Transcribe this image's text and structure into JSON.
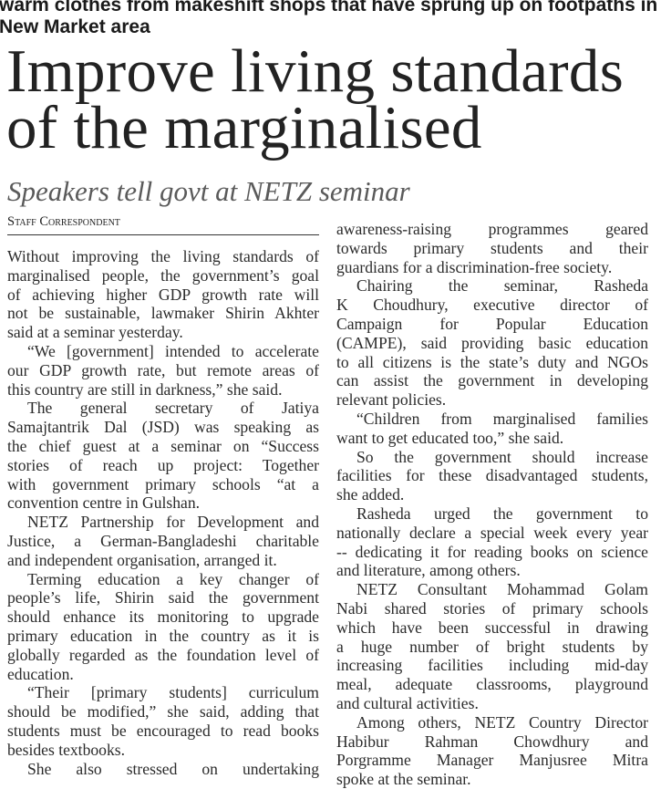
{
  "top_caption": "warm clothes from makeshift shops that have sprung up on footpaths in New Market area",
  "headline": [
    "Improve living standards",
    "of the marginalised"
  ],
  "subheadline": "Speakers tell govt at NETZ seminar",
  "byline": "Staff Correspondent",
  "columns": {
    "left": [
      {
        "indent": false,
        "lines": [
          "Without improving the living standards of",
          "marginalised people, the government’s goal",
          "of achieving higher GDP growth rate will",
          "not be sustainable, lawmaker Shirin Akhter",
          "said at a seminar yesterday."
        ]
      },
      {
        "indent": true,
        "lines": [
          "“We [government] intended to accelerate",
          "our GDP growth rate, but remote areas of",
          "this country are still in darkness,” she said."
        ]
      },
      {
        "indent": true,
        "lines": [
          "The general secretary of Jatiya",
          "Samajtantrik Dal (JSD) was speaking as",
          "the chief guest at a seminar on “Success",
          "stories of reach up project: Together",
          "with government primary schools “at a",
          "convention centre in Gulshan."
        ]
      },
      {
        "indent": true,
        "lines": [
          "NETZ Partnership for Development and",
          "Justice, a German-Bangladeshi charitable",
          "and independent organisation, arranged it."
        ]
      },
      {
        "indent": true,
        "lines": [
          "Terming education a key changer of",
          "people’s life, Shirin said the government",
          "should enhance its monitoring to upgrade",
          "primary education in the country as it is",
          "globally regarded as the foundation level of",
          "education."
        ]
      },
      {
        "indent": true,
        "lines": [
          "“Their [primary students] curriculum",
          "should be modified,” she said, adding that",
          "students must be encouraged to read books",
          "besides textbooks."
        ]
      },
      {
        "indent": true,
        "continues": true,
        "lines": [
          "She also stressed on undertaking"
        ]
      }
    ],
    "right": [
      {
        "indent": false,
        "lines": [
          "awareness-raising programmes geared",
          "towards primary students and their",
          "guardians for a discrimination-free society."
        ]
      },
      {
        "indent": true,
        "lines": [
          "Chairing the seminar, Rasheda",
          "K Choudhury, executive director of",
          "Campaign for Popular Education",
          "(CAMPE), said providing basic education",
          "to all citizens is the state’s duty and NGOs",
          "can assist the government in developing",
          "relevant policies."
        ]
      },
      {
        "indent": true,
        "lines": [
          "“Children from marginalised families",
          "want to get educated too,” she said."
        ]
      },
      {
        "indent": true,
        "lines": [
          "So the government should increase",
          "facilities for these disadvantaged students,",
          "she added."
        ]
      },
      {
        "indent": true,
        "lines": [
          "Rasheda urged the government to",
          "nationally declare a special week every year",
          "-- dedicating it for reading books on science",
          "and literature, among others."
        ]
      },
      {
        "indent": true,
        "lines": [
          "NETZ Consultant Mohammad Golam",
          "Nabi shared stories of primary schools",
          "which have been successful in drawing",
          "a huge number of bright students by",
          "increasing facilities including mid-day",
          "meal, adequate classrooms, playground",
          "and cultural activities."
        ]
      },
      {
        "indent": true,
        "lines": [
          "Among others, NETZ Country Director",
          "Habibur Rahman Chowdhury and",
          "Porgramme Manager Manjusree Mitra",
          "spoke at the seminar."
        ]
      }
    ]
  }
}
